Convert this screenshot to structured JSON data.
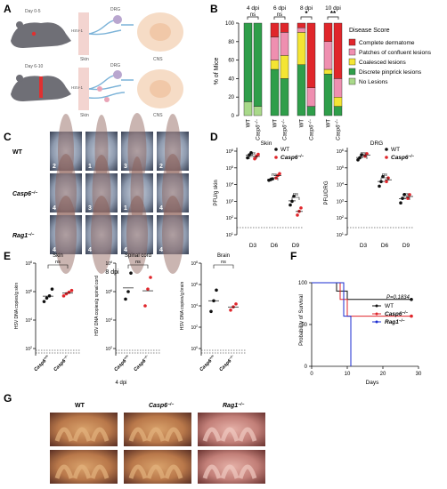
{
  "panels": {
    "A": {
      "label": "A",
      "top": {
        "day": "Day 0-5",
        "hsv": "HSV-1",
        "drg": "DRG",
        "skin": "Skin",
        "cns": "CNS"
      },
      "bottom": {
        "day": "Day 6-10",
        "hsv": "HSV-1",
        "drg": "DRG",
        "skin": "Skin",
        "cns": "CNS"
      }
    },
    "B": {
      "label": "B",
      "ylabel": "% of Mice",
      "ticks": [
        "0",
        "20",
        "40",
        "60",
        "80",
        "100"
      ],
      "groups": [
        {
          "dpi": "4 dpi",
          "sig": "ns"
        },
        {
          "dpi": "6 dpi",
          "sig": "ns"
        },
        {
          "dpi": "8 dpi",
          "sig": "*"
        },
        {
          "dpi": "10 dpi",
          "sig": "**"
        }
      ],
      "genotypes": [
        "WT",
        "Casp6",
        "−/−"
      ],
      "legend_title": "Disease Score",
      "legend": [
        {
          "label": "Complete dermatome",
          "color": "#e0262b"
        },
        {
          "label": "Patches of confluent lesions",
          "color": "#ef8fb0"
        },
        {
          "label": "Coalesced lesions",
          "color": "#f4e534"
        },
        {
          "label": "Discrete pinprick lesions",
          "color": "#2f9e4a"
        },
        {
          "label": "No Lesions",
          "color": "#a9d98a"
        }
      ]
    },
    "C": {
      "label": "C",
      "rows": [
        {
          "name": "WT",
          "sup": "",
          "scores": [
            "2",
            "1",
            "3",
            "2"
          ]
        },
        {
          "name": "Casp6",
          "sup": "−/−",
          "scores": [
            "4",
            "3",
            "1",
            "4"
          ]
        },
        {
          "name": "Rag1",
          "sup": "−/−",
          "scores": [
            "4",
            "4",
            "4",
            "4"
          ]
        }
      ],
      "caption": "8 dpi"
    },
    "D": {
      "label": "D",
      "charts": [
        {
          "title": "Skin",
          "ylabel": "PFU/g skin"
        },
        {
          "title": "DRG",
          "ylabel": "PFU/DRG"
        }
      ],
      "yticks": [
        "10",
        "10",
        "10",
        "10",
        "10",
        "10"
      ],
      "yexp": [
        "6",
        "5",
        "4",
        "3",
        "2",
        "1"
      ],
      "days": [
        "D3",
        "D6",
        "D9"
      ],
      "sig": "ns",
      "legend": [
        {
          "label": "WT",
          "sup": ""
        },
        {
          "label": "Casp6",
          "sup": "−/−"
        }
      ]
    },
    "E": {
      "label": "E",
      "charts": [
        {
          "title": "Skin",
          "ylabel": "HSV DNA copies/g skin",
          "ticks": [
            [
              "10",
              "8"
            ],
            [
              "10",
              "6"
            ],
            [
              "10",
              "4"
            ],
            [
              "10",
              "2"
            ]
          ]
        },
        {
          "title": "Spinal cord",
          "ylabel": "HSV DNA copies/g spinal cord",
          "ticks": [
            [
              "10",
              "8"
            ],
            [
              "10",
              "6"
            ],
            [
              "10",
              "4"
            ],
            [
              "10",
              "2"
            ]
          ]
        },
        {
          "title": "Brain",
          "ylabel": "HSV DNA copies/g brain",
          "ticks": [
            [
              "10",
              "8"
            ],
            [
              "10",
              "6"
            ],
            [
              "10",
              "4"
            ],
            [
              "10",
              "2"
            ],
            [
              "10",
              "0"
            ]
          ]
        }
      ],
      "groups": [
        {
          "label": "Casp6",
          "sup": "+/+"
        },
        {
          "label": "Casp6",
          "sup": "−/−"
        }
      ],
      "sig": "ns",
      "caption": "4 dpi"
    },
    "F": {
      "label": "F",
      "ylabel": "Probability of Survival",
      "xlabel": "Days",
      "yticks": [
        "100",
        "50",
        "0"
      ],
      "xticks": [
        "0",
        "10",
        "20",
        "30"
      ],
      "pvalue": "P=0.1834",
      "legend": [
        {
          "label": "WT",
          "sup": "",
          "color": "#111111"
        },
        {
          "label": "Casp6",
          "sup": "−/−",
          "color": "#e0262b"
        },
        {
          "label": "Rag1",
          "sup": "−/−",
          "color": "#1a2bd1"
        }
      ]
    },
    "G": {
      "label": "G",
      "cols": [
        {
          "name": "WT",
          "sup": ""
        },
        {
          "name": "Casp6",
          "sup": "−/−"
        },
        {
          "name": "Rag1",
          "sup": "−/−"
        }
      ]
    }
  },
  "chart_data": [
    {
      "type": "bar",
      "panel": "B",
      "stacked": true,
      "ylim": [
        0,
        100
      ],
      "categories": [
        "4 dpi WT",
        "4 dpi Casp6−/−",
        "6 dpi WT",
        "6 dpi Casp6−/−",
        "8 dpi WT",
        "8 dpi Casp6−/−",
        "10 dpi WT",
        "10 dpi Casp6−/−"
      ],
      "series": [
        {
          "name": "No Lesions",
          "values": [
            15,
            10,
            0,
            0,
            0,
            0,
            0,
            0
          ]
        },
        {
          "name": "Discrete pinprick lesions",
          "values": [
            85,
            90,
            50,
            40,
            55,
            10,
            45,
            10
          ]
        },
        {
          "name": "Coalesced lesions",
          "values": [
            0,
            0,
            10,
            25,
            35,
            0,
            5,
            10
          ]
        },
        {
          "name": "Patches of confluent lesions",
          "values": [
            0,
            0,
            25,
            25,
            5,
            20,
            30,
            20
          ]
        },
        {
          "name": "Complete dermatome",
          "values": [
            0,
            0,
            15,
            10,
            5,
            70,
            20,
            60
          ]
        }
      ]
    },
    {
      "type": "scatter",
      "panel": "D-Skin",
      "ylog": true,
      "ylim": [
        10,
        1000000
      ],
      "series": [
        {
          "name": "WT",
          "points": [
            [
              "D3",
              400000
            ],
            [
              "D3",
              600000
            ],
            [
              "D3",
              800000
            ],
            [
              "D6",
              18000
            ],
            [
              "D6",
              20000
            ],
            [
              "D6",
              22000
            ],
            [
              "D9",
              600
            ],
            [
              "D9",
              1000
            ],
            [
              "D9",
              2000
            ]
          ]
        },
        {
          "name": "Casp6−/−",
          "points": [
            [
              "D3",
              350000
            ],
            [
              "D3",
              500000
            ],
            [
              "D3",
              650000
            ],
            [
              "D6",
              25000
            ],
            [
              "D6",
              35000
            ],
            [
              "D6",
              45000
            ],
            [
              "D9",
              150
            ],
            [
              "D9",
              250
            ],
            [
              "D9",
              400
            ]
          ]
        }
      ]
    },
    {
      "type": "scatter",
      "panel": "D-DRG",
      "ylog": true,
      "ylim": [
        10,
        1000000
      ],
      "series": [
        {
          "name": "WT",
          "points": [
            [
              "D3",
              300000
            ],
            [
              "D3",
              400000
            ],
            [
              "D3",
              600000
            ],
            [
              "D6",
              8000
            ],
            [
              "D6",
              15000
            ],
            [
              "D6",
              30000
            ],
            [
              "D9",
              800
            ],
            [
              "D9",
              1500
            ],
            [
              "D9",
              2500
            ]
          ]
        },
        {
          "name": "Casp6−/−",
          "points": [
            [
              "D3",
              500000
            ],
            [
              "D3",
              700000
            ],
            [
              "D6",
              15000
            ],
            [
              "D6",
              25000
            ],
            [
              "D9",
              1500
            ],
            [
              "D9",
              2500
            ]
          ]
        }
      ]
    },
    {
      "type": "scatter",
      "panel": "E-Skin",
      "ylog": true,
      "ylim": [
        100,
        100000000
      ],
      "series": [
        {
          "name": "Casp6+/+",
          "values": [
            200000,
            350000,
            500000,
            1500000
          ]
        },
        {
          "name": "Casp6−/−",
          "values": [
            500000,
            700000,
            900000,
            1200000
          ]
        }
      ]
    },
    {
      "type": "scatter",
      "panel": "E-Spinal cord",
      "ylog": true,
      "ylim": [
        100,
        100000000
      ],
      "series": [
        {
          "name": "Casp6+/+",
          "values": [
            300000,
            1000000,
            20000000
          ]
        },
        {
          "name": "Casp6−/−",
          "values": [
            100000,
            1500000,
            10000000
          ]
        }
      ]
    },
    {
      "type": "scatter",
      "panel": "E-Brain",
      "ylog": true,
      "ylim": [
        1,
        100000000
      ],
      "series": [
        {
          "name": "Casp6+/+",
          "values": [
            3000,
            30000,
            300000
          ]
        },
        {
          "name": "Casp6−/−",
          "values": [
            4000,
            8000,
            15000
          ]
        }
      ]
    },
    {
      "type": "line",
      "panel": "F",
      "step": true,
      "xlim": [
        0,
        30
      ],
      "ylim": [
        0,
        100
      ],
      "series": [
        {
          "name": "WT",
          "points": [
            [
              0,
              100
            ],
            [
              7,
              100
            ],
            [
              7,
              90
            ],
            [
              10,
              90
            ],
            [
              10,
              80
            ],
            [
              28,
              80
            ]
          ]
        },
        {
          "name": "Casp6−/−",
          "points": [
            [
              0,
              100
            ],
            [
              8,
              100
            ],
            [
              8,
              80
            ],
            [
              10,
              80
            ],
            [
              10,
              60
            ],
            [
              28,
              60
            ]
          ]
        },
        {
          "name": "Rag1−/−",
          "points": [
            [
              0,
              100
            ],
            [
              9,
              100
            ],
            [
              9,
              60
            ],
            [
              11,
              60
            ],
            [
              11,
              0
            ]
          ]
        }
      ]
    }
  ]
}
